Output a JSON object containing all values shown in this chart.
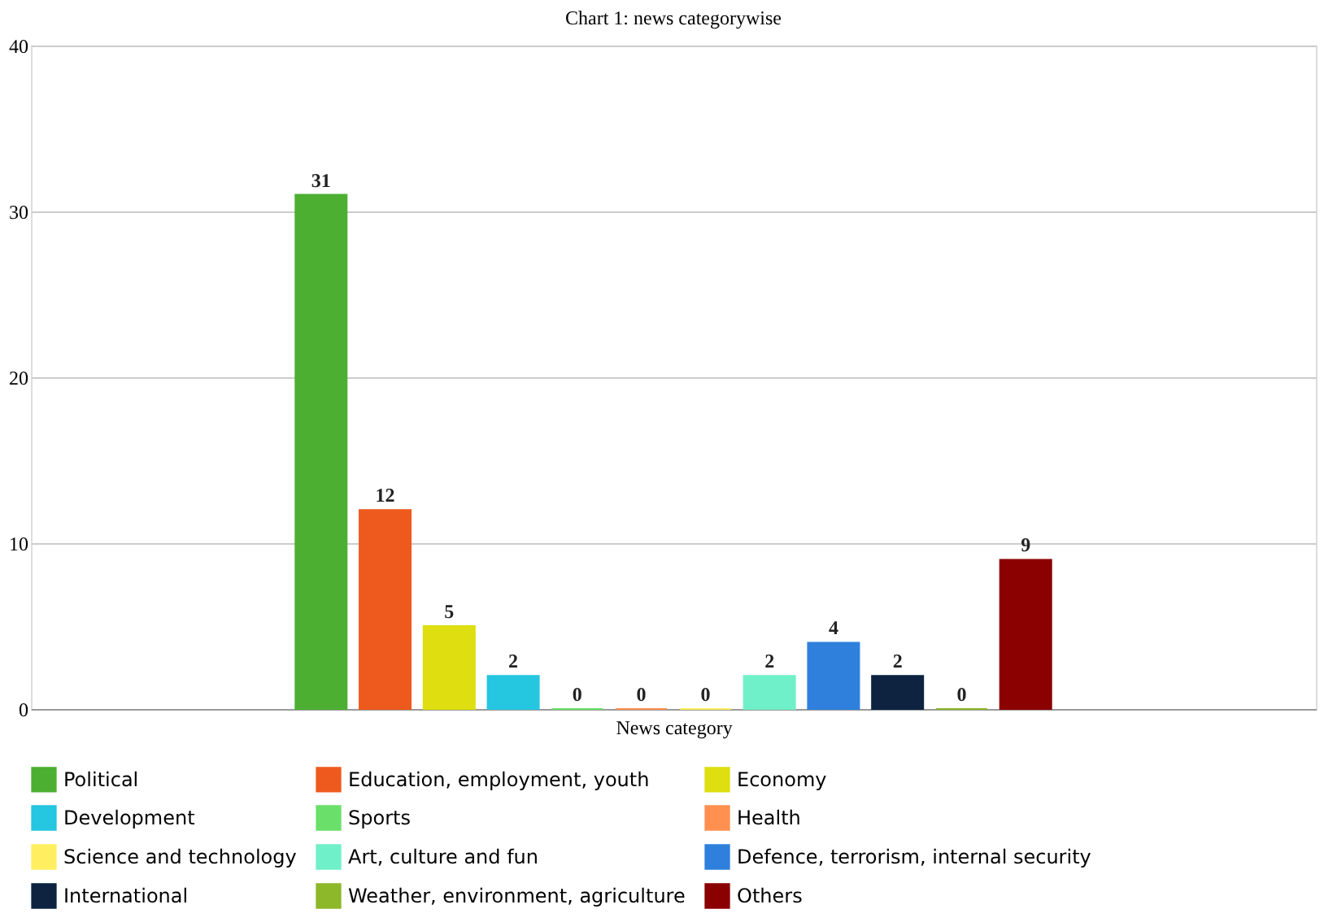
{
  "chart_data": {
    "type": "bar",
    "title": "Chart 1: news categorywise",
    "xlabel": "News category",
    "categories": [
      null
    ],
    "series": [
      {
        "name": "Political",
        "color": "#4caf32",
        "values": [
          31
        ]
      },
      {
        "name": "Education, employment, youth",
        "color": "#ee5a1e",
        "values": [
          12
        ]
      },
      {
        "name": "Economy",
        "color": "#dede10",
        "values": [
          5
        ]
      },
      {
        "name": "Development",
        "color": "#25c6e0",
        "values": [
          2
        ]
      },
      {
        "name": "Sports",
        "color": "#6ae06a",
        "values": [
          0
        ]
      },
      {
        "name": "Health",
        "color": "#ff9050",
        "values": [
          0
        ]
      },
      {
        "name": "Science and technology",
        "color": "#ffef60",
        "values": [
          0
        ]
      },
      {
        "name": "Art, culture and fun",
        "color": "#70f0c8",
        "values": [
          2
        ]
      },
      {
        "name": "Defence, terrorism, internal security",
        "color": "#2f80dc",
        "values": [
          4
        ]
      },
      {
        "name": "International",
        "color": "#0d2340",
        "values": [
          2
        ]
      },
      {
        "name": "Weather, environment, agriculture",
        "color": "#8cb82a",
        "values": [
          0
        ]
      },
      {
        "name": "Others",
        "color": "#8b0000",
        "values": [
          9
        ]
      }
    ],
    "ylim": [
      0,
      40
    ],
    "yticks": [
      0,
      10,
      20,
      30,
      40
    ],
    "grid": "y",
    "legend": "bottom",
    "data_labels": true
  }
}
